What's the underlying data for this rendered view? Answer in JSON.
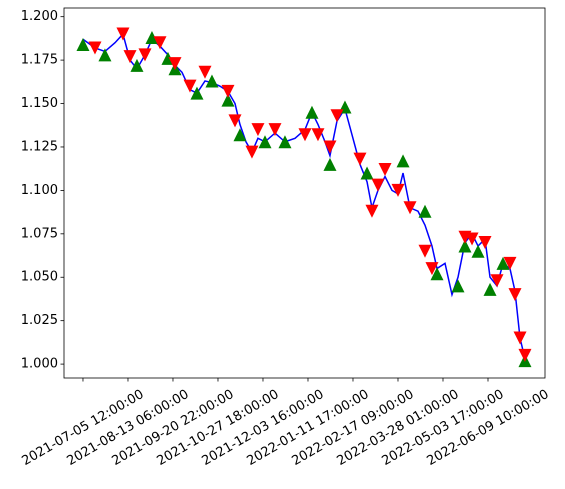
{
  "chart_data": {
    "type": "line",
    "xlim": [
      -253,
      6160
    ],
    "ylim": [
      0.992,
      1.205
    ],
    "xticks": [
      {
        "value": 0,
        "label": "2021-07-05 12:00:00"
      },
      {
        "value": 600,
        "label": "2021-08-13 06:00:00"
      },
      {
        "value": 1200,
        "label": "2021-09-20 22:00:00"
      },
      {
        "value": 1800,
        "label": "2021-10-27 18:00:00"
      },
      {
        "value": 2400,
        "label": "2021-12-03 16:00:00"
      },
      {
        "value": 3000,
        "label": "2022-01-11 17:00:00"
      },
      {
        "value": 3600,
        "label": "2022-02-17 09:00:00"
      },
      {
        "value": 4200,
        "label": "2022-03-28 01:00:00"
      },
      {
        "value": 4800,
        "label": "2022-05-03 17:00:00"
      },
      {
        "value": 5400,
        "label": "2022-06-09 10:00:00"
      }
    ],
    "yticks": [
      {
        "value": 1.0,
        "label": "1.000"
      },
      {
        "value": 1.025,
        "label": "1.025"
      },
      {
        "value": 1.05,
        "label": "1.050"
      },
      {
        "value": 1.075,
        "label": "1.075"
      },
      {
        "value": 1.1,
        "label": "1.100"
      },
      {
        "value": 1.125,
        "label": "1.125"
      },
      {
        "value": 1.15,
        "label": "1.150"
      },
      {
        "value": 1.175,
        "label": "1.175"
      },
      {
        "value": 1.2,
        "label": "1.200"
      }
    ],
    "series": [
      {
        "style": "line",
        "color": "#0000ff",
        "x": [
          0,
          160,
          293,
          427,
          533,
          627,
          720,
          827,
          920,
          1027,
          1133,
          1227,
          1320,
          1427,
          1520,
          1627,
          1720,
          1827,
          1933,
          2027,
          2093,
          2173,
          2253,
          2333,
          2427,
          2560,
          2693,
          2827,
          2960,
          3053,
          3133,
          3227,
          3293,
          3387,
          3493,
          3587,
          3693,
          3787,
          3853,
          3933,
          4027,
          4120,
          4200,
          4267,
          4360,
          4467,
          4560,
          4653,
          4720,
          4827,
          4920,
          5000,
          5093,
          5187,
          5267,
          5360,
          5427,
          5520,
          5600,
          5693,
          5760,
          5827,
          5893,
          5960
        ],
        "values": [
          1.187,
          1.182,
          1.18,
          1.185,
          1.19,
          1.175,
          1.17,
          1.178,
          1.187,
          1.183,
          1.178,
          1.172,
          1.168,
          1.158,
          1.156,
          1.163,
          1.162,
          1.16,
          1.157,
          1.15,
          1.138,
          1.128,
          1.122,
          1.13,
          1.128,
          1.133,
          1.128,
          1.13,
          1.135,
          1.145,
          1.138,
          1.128,
          1.12,
          1.14,
          1.147,
          1.132,
          1.115,
          1.105,
          1.09,
          1.1,
          1.108,
          1.1,
          1.098,
          1.11,
          1.09,
          1.088,
          1.08,
          1.068,
          1.055,
          1.058,
          1.04,
          1.05,
          1.07,
          1.075,
          1.068,
          1.072,
          1.05,
          1.045,
          1.058,
          1.055,
          1.042,
          1.015,
          1.003,
          1.008
        ]
      },
      {
        "style": "marker-up",
        "color": "#008000",
        "x": [
          0,
          293,
          720,
          920,
          1133,
          1227,
          1520,
          1720,
          1933,
          2093,
          2427,
          2693,
          3053,
          3293,
          3493,
          3787,
          4267,
          4560,
          4720,
          5000,
          5093,
          5267,
          5427,
          5600,
          5893
        ],
        "values": [
          1.184,
          1.178,
          1.172,
          1.188,
          1.176,
          1.17,
          1.156,
          1.163,
          1.152,
          1.132,
          1.128,
          1.128,
          1.145,
          1.115,
          1.148,
          1.11,
          1.117,
          1.088,
          1.052,
          1.045,
          1.068,
          1.065,
          1.043,
          1.058,
          1.002
        ]
      },
      {
        "style": "marker-down",
        "color": "#ff0000",
        "x": [
          160,
          533,
          627,
          827,
          1027,
          1227,
          1427,
          1627,
          1933,
          2027,
          2253,
          2333,
          2560,
          2960,
          3133,
          3293,
          3387,
          3693,
          3853,
          3933,
          4027,
          4200,
          4360,
          4560,
          4653,
          5093,
          5187,
          5360,
          5520,
          5693,
          5760,
          5827,
          5893
        ],
        "values": [
          1.182,
          1.19,
          1.177,
          1.178,
          1.185,
          1.173,
          1.16,
          1.168,
          1.157,
          1.14,
          1.122,
          1.135,
          1.135,
          1.132,
          1.132,
          1.125,
          1.143,
          1.118,
          1.088,
          1.103,
          1.112,
          1.1,
          1.09,
          1.065,
          1.055,
          1.073,
          1.072,
          1.07,
          1.048,
          1.058,
          1.04,
          1.015,
          1.005
        ]
      }
    ]
  }
}
